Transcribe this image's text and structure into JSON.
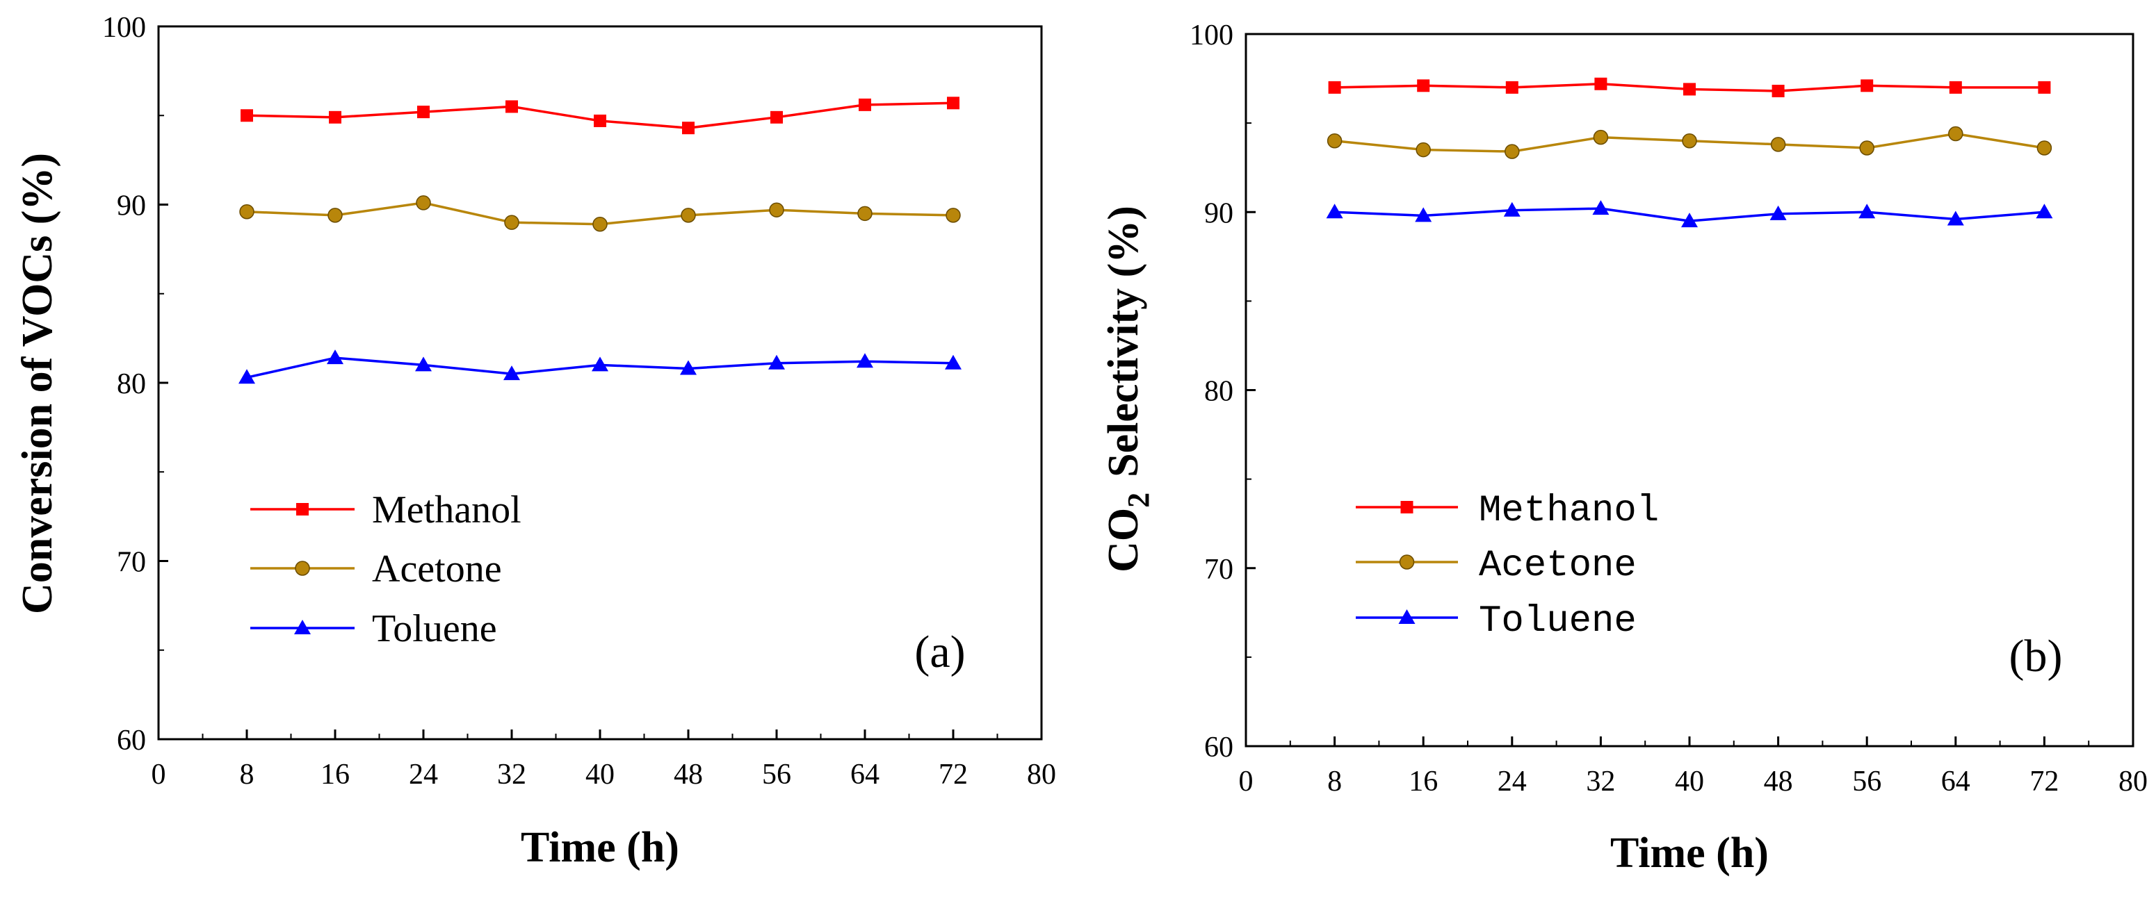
{
  "chart_data": [
    {
      "type": "line",
      "panel_label": "(a)",
      "xlabel": "Time (h)",
      "ylabel": "Conversion of VOCs (%)",
      "xlim": [
        0,
        80
      ],
      "ylim": [
        60,
        100
      ],
      "xticks": [
        "0",
        "8",
        "16",
        "24",
        "32",
        "40",
        "48",
        "56",
        "64",
        "72",
        "80"
      ],
      "yticks": [
        "60",
        "70",
        "80",
        "90",
        "100"
      ],
      "x": [
        8,
        16,
        24,
        32,
        40,
        48,
        56,
        64,
        72
      ],
      "legend_position": "center-left",
      "series": [
        {
          "name": "Methanol",
          "color": "#ff0000",
          "marker": "square",
          "values": [
            95.0,
            94.9,
            95.2,
            95.5,
            94.7,
            94.3,
            94.9,
            95.6,
            95.7
          ]
        },
        {
          "name": "Acetone",
          "color": "#b8860b",
          "marker": "circle",
          "values": [
            89.6,
            89.4,
            90.1,
            89.0,
            88.9,
            89.4,
            89.7,
            89.5,
            89.4
          ]
        },
        {
          "name": "Toluene",
          "color": "#0000ff",
          "marker": "triangle",
          "values": [
            80.3,
            81.4,
            81.0,
            80.5,
            81.0,
            80.8,
            81.1,
            81.2,
            81.1
          ]
        }
      ]
    },
    {
      "type": "line",
      "panel_label": "(b)",
      "xlabel": "Time (h)",
      "ylabel_main": "CO",
      "ylabel_sub": "2",
      "ylabel_rest": "Selectivity (%)",
      "xlim": [
        0,
        80
      ],
      "ylim": [
        60,
        100
      ],
      "xticks": [
        "0",
        "8",
        "16",
        "24",
        "32",
        "40",
        "48",
        "56",
        "64",
        "72",
        "80"
      ],
      "yticks": [
        "60",
        "70",
        "80",
        "90",
        "100"
      ],
      "x": [
        8,
        16,
        24,
        32,
        40,
        48,
        56,
        64,
        72
      ],
      "legend_position": "center-left",
      "series": [
        {
          "name": "Methanol",
          "color": "#ff0000",
          "marker": "square",
          "values": [
            97.0,
            97.1,
            97.0,
            97.2,
            96.9,
            96.8,
            97.1,
            97.0,
            97.0
          ]
        },
        {
          "name": "Acetone",
          "color": "#b8860b",
          "marker": "circle",
          "values": [
            94.0,
            93.5,
            93.4,
            94.2,
            94.0,
            93.8,
            93.6,
            94.4,
            93.6
          ]
        },
        {
          "name": "Toluene",
          "color": "#0000ff",
          "marker": "triangle",
          "values": [
            90.0,
            89.8,
            90.1,
            90.2,
            89.5,
            89.9,
            90.0,
            89.6,
            90.0
          ]
        }
      ]
    }
  ]
}
